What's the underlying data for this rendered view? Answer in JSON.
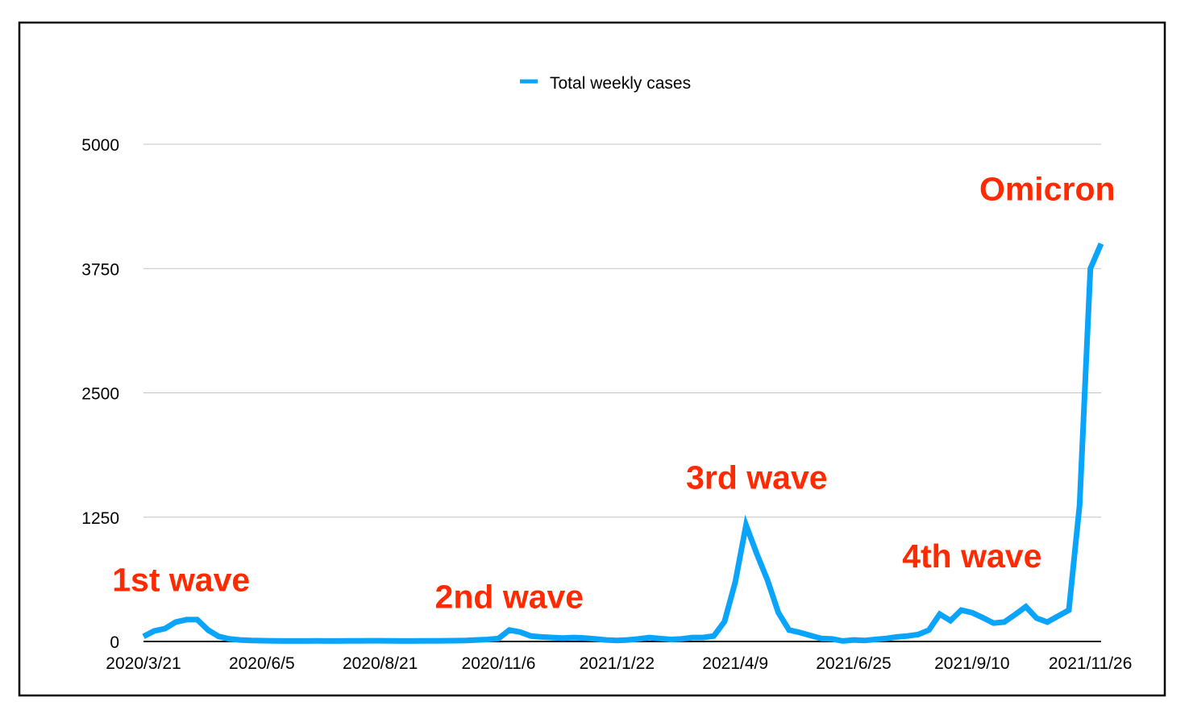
{
  "chart_data": {
    "type": "line",
    "title": "",
    "xlabel": "",
    "ylabel": "",
    "ylim": [
      0,
      5000
    ],
    "yticks": [
      "0",
      "1250",
      "2500",
      "3750",
      "5000"
    ],
    "ytick_values": [
      0,
      1250,
      2500,
      3750,
      5000
    ],
    "grid": true,
    "legend_position": "top-center",
    "xtick_labels": [
      "2020/3/21",
      "2020/6/5",
      "2020/8/21",
      "2020/11/6",
      "2021/1/22",
      "2021/4/9",
      "2021/6/25",
      "2021/9/10",
      "2021/11/26"
    ],
    "xtick_indices": [
      0,
      11,
      22,
      33,
      44,
      55,
      66,
      77,
      88
    ],
    "series": [
      {
        "name": "Total weekly cases",
        "color": "#0aa5fa",
        "values": [
          50,
          105,
          130,
          195,
          220,
          220,
          115,
          50,
          25,
          15,
          10,
          8,
          6,
          5,
          5,
          5,
          6,
          5,
          5,
          6,
          6,
          7,
          7,
          6,
          5,
          5,
          6,
          6,
          7,
          8,
          10,
          15,
          20,
          30,
          115,
          95,
          55,
          45,
          40,
          35,
          40,
          35,
          25,
          15,
          10,
          15,
          25,
          40,
          30,
          20,
          25,
          40,
          40,
          55,
          200,
          600,
          1170,
          880,
          615,
          290,
          115,
          90,
          60,
          30,
          25,
          5,
          15,
          10,
          20,
          30,
          45,
          55,
          70,
          115,
          275,
          210,
          315,
          290,
          240,
          185,
          195,
          270,
          350,
          235,
          195,
          255,
          315,
          1370,
          3750,
          4000
        ]
      }
    ],
    "annotations": [
      {
        "text": "1st wave",
        "index": 3.5,
        "value": 620
      },
      {
        "text": "2nd wave",
        "index": 34,
        "value": 450
      },
      {
        "text": "3rd wave",
        "index": 57,
        "value": 1650
      },
      {
        "text": "4th wave",
        "index": 77,
        "value": 860
      },
      {
        "text": "Omicron",
        "index": 84,
        "value": 4550
      }
    ],
    "annotation_color": "#ff2a00"
  }
}
